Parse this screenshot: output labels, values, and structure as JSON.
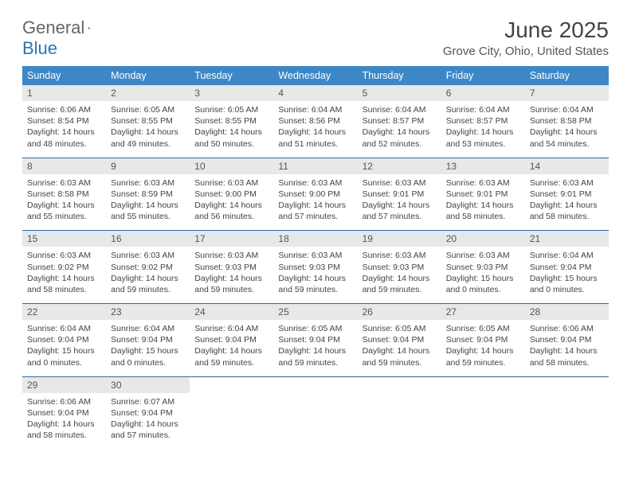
{
  "brand": {
    "word1": "General",
    "word2": "Blue",
    "accent_color": "#3d87c7"
  },
  "title": "June 2025",
  "location": "Grove City, Ohio, United States",
  "day_headers": [
    "Sunday",
    "Monday",
    "Tuesday",
    "Wednesday",
    "Thursday",
    "Friday",
    "Saturday"
  ],
  "colors": {
    "header_bg": "#3d87c7",
    "header_text": "#ffffff",
    "daynum_bg": "#e8e8e8",
    "week_divider": "#2a6aa5",
    "body_text": "#444444"
  },
  "typography": {
    "title_fontsize": 28,
    "location_fontsize": 15,
    "header_fontsize": 12.5,
    "body_fontsize": 10.5
  },
  "weeks": [
    [
      {
        "n": "1",
        "sr": "Sunrise: 6:06 AM",
        "ss": "Sunset: 8:54 PM",
        "d1": "Daylight: 14 hours",
        "d2": "and 48 minutes."
      },
      {
        "n": "2",
        "sr": "Sunrise: 6:05 AM",
        "ss": "Sunset: 8:55 PM",
        "d1": "Daylight: 14 hours",
        "d2": "and 49 minutes."
      },
      {
        "n": "3",
        "sr": "Sunrise: 6:05 AM",
        "ss": "Sunset: 8:55 PM",
        "d1": "Daylight: 14 hours",
        "d2": "and 50 minutes."
      },
      {
        "n": "4",
        "sr": "Sunrise: 6:04 AM",
        "ss": "Sunset: 8:56 PM",
        "d1": "Daylight: 14 hours",
        "d2": "and 51 minutes."
      },
      {
        "n": "5",
        "sr": "Sunrise: 6:04 AM",
        "ss": "Sunset: 8:57 PM",
        "d1": "Daylight: 14 hours",
        "d2": "and 52 minutes."
      },
      {
        "n": "6",
        "sr": "Sunrise: 6:04 AM",
        "ss": "Sunset: 8:57 PM",
        "d1": "Daylight: 14 hours",
        "d2": "and 53 minutes."
      },
      {
        "n": "7",
        "sr": "Sunrise: 6:04 AM",
        "ss": "Sunset: 8:58 PM",
        "d1": "Daylight: 14 hours",
        "d2": "and 54 minutes."
      }
    ],
    [
      {
        "n": "8",
        "sr": "Sunrise: 6:03 AM",
        "ss": "Sunset: 8:58 PM",
        "d1": "Daylight: 14 hours",
        "d2": "and 55 minutes."
      },
      {
        "n": "9",
        "sr": "Sunrise: 6:03 AM",
        "ss": "Sunset: 8:59 PM",
        "d1": "Daylight: 14 hours",
        "d2": "and 55 minutes."
      },
      {
        "n": "10",
        "sr": "Sunrise: 6:03 AM",
        "ss": "Sunset: 9:00 PM",
        "d1": "Daylight: 14 hours",
        "d2": "and 56 minutes."
      },
      {
        "n": "11",
        "sr": "Sunrise: 6:03 AM",
        "ss": "Sunset: 9:00 PM",
        "d1": "Daylight: 14 hours",
        "d2": "and 57 minutes."
      },
      {
        "n": "12",
        "sr": "Sunrise: 6:03 AM",
        "ss": "Sunset: 9:01 PM",
        "d1": "Daylight: 14 hours",
        "d2": "and 57 minutes."
      },
      {
        "n": "13",
        "sr": "Sunrise: 6:03 AM",
        "ss": "Sunset: 9:01 PM",
        "d1": "Daylight: 14 hours",
        "d2": "and 58 minutes."
      },
      {
        "n": "14",
        "sr": "Sunrise: 6:03 AM",
        "ss": "Sunset: 9:01 PM",
        "d1": "Daylight: 14 hours",
        "d2": "and 58 minutes."
      }
    ],
    [
      {
        "n": "15",
        "sr": "Sunrise: 6:03 AM",
        "ss": "Sunset: 9:02 PM",
        "d1": "Daylight: 14 hours",
        "d2": "and 58 minutes."
      },
      {
        "n": "16",
        "sr": "Sunrise: 6:03 AM",
        "ss": "Sunset: 9:02 PM",
        "d1": "Daylight: 14 hours",
        "d2": "and 59 minutes."
      },
      {
        "n": "17",
        "sr": "Sunrise: 6:03 AM",
        "ss": "Sunset: 9:03 PM",
        "d1": "Daylight: 14 hours",
        "d2": "and 59 minutes."
      },
      {
        "n": "18",
        "sr": "Sunrise: 6:03 AM",
        "ss": "Sunset: 9:03 PM",
        "d1": "Daylight: 14 hours",
        "d2": "and 59 minutes."
      },
      {
        "n": "19",
        "sr": "Sunrise: 6:03 AM",
        "ss": "Sunset: 9:03 PM",
        "d1": "Daylight: 14 hours",
        "d2": "and 59 minutes."
      },
      {
        "n": "20",
        "sr": "Sunrise: 6:03 AM",
        "ss": "Sunset: 9:03 PM",
        "d1": "Daylight: 15 hours",
        "d2": "and 0 minutes."
      },
      {
        "n": "21",
        "sr": "Sunrise: 6:04 AM",
        "ss": "Sunset: 9:04 PM",
        "d1": "Daylight: 15 hours",
        "d2": "and 0 minutes."
      }
    ],
    [
      {
        "n": "22",
        "sr": "Sunrise: 6:04 AM",
        "ss": "Sunset: 9:04 PM",
        "d1": "Daylight: 15 hours",
        "d2": "and 0 minutes."
      },
      {
        "n": "23",
        "sr": "Sunrise: 6:04 AM",
        "ss": "Sunset: 9:04 PM",
        "d1": "Daylight: 15 hours",
        "d2": "and 0 minutes."
      },
      {
        "n": "24",
        "sr": "Sunrise: 6:04 AM",
        "ss": "Sunset: 9:04 PM",
        "d1": "Daylight: 14 hours",
        "d2": "and 59 minutes."
      },
      {
        "n": "25",
        "sr": "Sunrise: 6:05 AM",
        "ss": "Sunset: 9:04 PM",
        "d1": "Daylight: 14 hours",
        "d2": "and 59 minutes."
      },
      {
        "n": "26",
        "sr": "Sunrise: 6:05 AM",
        "ss": "Sunset: 9:04 PM",
        "d1": "Daylight: 14 hours",
        "d2": "and 59 minutes."
      },
      {
        "n": "27",
        "sr": "Sunrise: 6:05 AM",
        "ss": "Sunset: 9:04 PM",
        "d1": "Daylight: 14 hours",
        "d2": "and 59 minutes."
      },
      {
        "n": "28",
        "sr": "Sunrise: 6:06 AM",
        "ss": "Sunset: 9:04 PM",
        "d1": "Daylight: 14 hours",
        "d2": "and 58 minutes."
      }
    ],
    [
      {
        "n": "29",
        "sr": "Sunrise: 6:06 AM",
        "ss": "Sunset: 9:04 PM",
        "d1": "Daylight: 14 hours",
        "d2": "and 58 minutes."
      },
      {
        "n": "30",
        "sr": "Sunrise: 6:07 AM",
        "ss": "Sunset: 9:04 PM",
        "d1": "Daylight: 14 hours",
        "d2": "and 57 minutes."
      },
      null,
      null,
      null,
      null,
      null
    ]
  ]
}
